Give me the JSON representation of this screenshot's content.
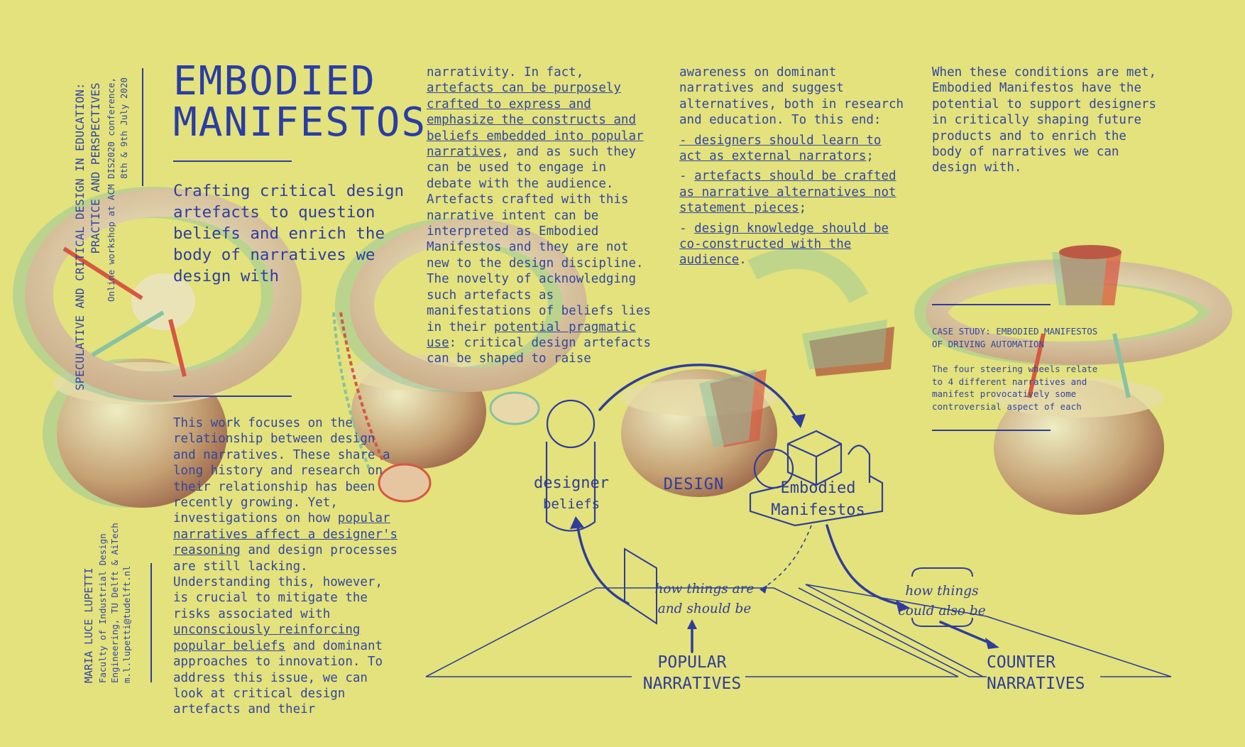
{
  "colors": {
    "background": "#e3e27c",
    "ink": "#2f3d99",
    "red": "#d44a3c",
    "teal": "#7fbfa6"
  },
  "side_header": {
    "line1": "SPECULATIVE AND CRITICAL DESIGN IN EDUCATION:",
    "line2": "PRACTICE AND PERSPECTIVES",
    "line3": "Online workshop at ACM DIS2020 conference,",
    "line4": "8th & 9th July 2020"
  },
  "author": {
    "name": "MARIA LUCE LUPETTI",
    "line2": "Faculty of Industrial Design",
    "line3": "Engineering, TU Delft & AiTech",
    "email": "m.l.lupetti@tudelft.nl"
  },
  "title": {
    "line1": "EMBODIED",
    "line2": "MANIFESTOS"
  },
  "subtitle": "Crafting critical design artefacts to question beliefs and enrich the body of narratives we design with",
  "col1": {
    "t1": "This work focuses on the relationship between design and narratives. These share a long history and research on their relationship has been recently growing. Yet, investigations on how ",
    "u1": "popular narratives affect a designer's reasoning",
    "t2": " and design processes are still lacking. Understanding this, however, is crucial to mitigate the risks associated with ",
    "u2": "unconsciously reinforcing popular beliefs",
    "t3": " and dominant approaches to innovation. To address this issue, we can look at critical design artefacts and their"
  },
  "col2": {
    "t1": "narrativity. In fact, ",
    "u1": "artefacts can be purposely crafted to express and emphasize the constructs and beliefs embedded into popular narratives",
    "t2": ", and as such they can be used to engage in debate with the audience. Artefacts crafted with this narrative intent can be interpreted as Embodied Manifestos and they are not new to the design discipline.  The novelty of acknowledging such artefacts as manifestations of beliefs lies in their ",
    "u2": "potential pragmatic use",
    "t3": ": critical design artefacts can be shaped to raise"
  },
  "col3": {
    "intro": "awareness on dominant narratives and suggest alternatives, both in research and education. To this end:",
    "b1": "- designers should learn to act as external narrators",
    "b1_end": ";",
    "b2_pre": "- ",
    "b2": "artefacts should be crafted as narrative alternatives not statement pieces",
    "b2_end": ";",
    "b3_pre": "- ",
    "b3": "design knowledge should be co-constructed with the audience",
    "b3_end": "."
  },
  "col4": "When these conditions are met, Embodied Manifestos have the potential to support designers in critically shaping future products and to enrich the body of narratives we can design with.",
  "case_study": {
    "title_l1": "CASE STUDY: EMBODIED MANIFESTOS",
    "title_l2": "OF DRIVING AUTOMATION",
    "body": "The four steering wheels relate to 4 different narratives and manifest provocatively some controversial aspect of each"
  },
  "diagram": {
    "designer": "designer",
    "beliefs": "beliefs",
    "design": "DESIGN",
    "em_line1": "Embodied",
    "em_line2": "Manifestos",
    "how_are_l1": "how things are",
    "how_are_l2": "and should be",
    "could_l1": "how things",
    "could_l2": "could also be",
    "popular_l1": "POPULAR",
    "popular_l2": "NARRATIVES",
    "counter_l1": "COUNTER",
    "counter_l2": "NARRATIVES"
  }
}
